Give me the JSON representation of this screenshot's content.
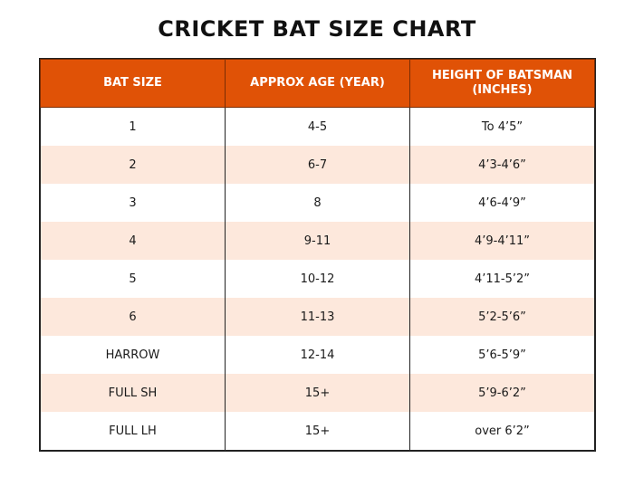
{
  "title": "CRICKET BAT SIZE CHART",
  "colors": {
    "header_bg": "#e05206",
    "header_text": "#ffffff",
    "stripe_bg": "#fde8dc",
    "border": "#222222"
  },
  "table": {
    "headers": [
      "BAT SIZE",
      "APPROX AGE (YEAR)",
      "HEIGHT OF BATSMAN (INCHES)"
    ],
    "rows": [
      [
        "1",
        "4-5",
        "To 4’5”"
      ],
      [
        "2",
        "6-7",
        "4’3-4’6”"
      ],
      [
        "3",
        "8",
        "4’6-4’9”"
      ],
      [
        "4",
        "9-11",
        "4’9-4’11”"
      ],
      [
        "5",
        "10-12",
        "4’11-5’2”"
      ],
      [
        "6",
        "11-13",
        "5’2-5’6”"
      ],
      [
        "HARROW",
        "12-14",
        "5’6-5’9”"
      ],
      [
        "FULL SH",
        "15+",
        "5’9-6’2”"
      ],
      [
        "FULL LH",
        "15+",
        "over 6’2”"
      ]
    ]
  }
}
